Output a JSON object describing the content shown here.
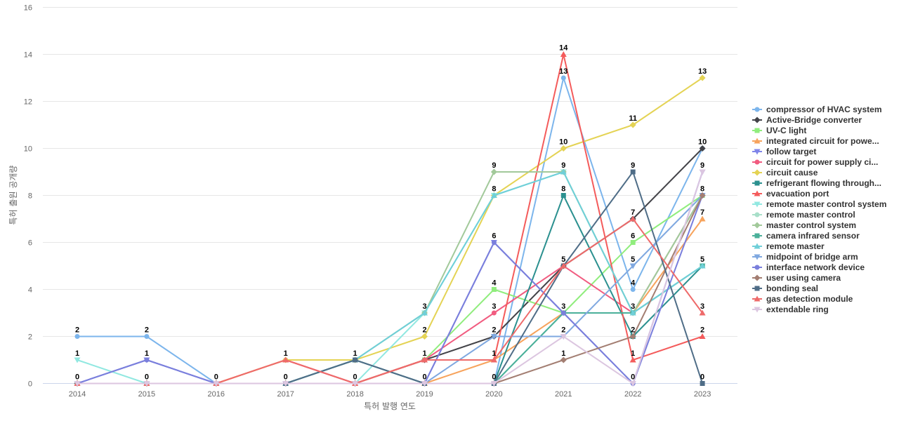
{
  "chart_data": {
    "type": "line",
    "xlabel": "특허 발행 연도",
    "ylabel": "특허 출원 공개량",
    "ylim": [
      0,
      16
    ],
    "yticks": [
      0,
      2,
      4,
      6,
      8,
      10,
      12,
      14,
      16
    ],
    "categories": [
      "2014",
      "2015",
      "2016",
      "2017",
      "2018",
      "2019",
      "2020",
      "2021",
      "2022",
      "2023"
    ],
    "grid": "horizontal",
    "legend_position": "right",
    "series": [
      {
        "name": "compressor of HVAC system",
        "color": "#7cb5ec",
        "marker": "circle",
        "values": [
          2,
          2,
          0,
          0,
          0,
          0,
          0,
          13,
          4,
          10
        ]
      },
      {
        "name": "Active-Bridge converter",
        "color": "#434348",
        "marker": "diamond",
        "values": [
          0,
          0,
          0,
          0,
          0,
          1,
          2,
          5,
          7,
          10
        ]
      },
      {
        "name": "UV-C light",
        "color": "#90ed7d",
        "marker": "square",
        "values": [
          0,
          0,
          0,
          0,
          0,
          1,
          4,
          3,
          6,
          8
        ]
      },
      {
        "name": "integrated circuit for powe...",
        "color": "#f7a35c",
        "marker": "triangle",
        "values": [
          0,
          0,
          0,
          0,
          0,
          0,
          1,
          3,
          3,
          7
        ]
      },
      {
        "name": "follow target",
        "color": "#8085e9",
        "marker": "triangle-down",
        "values": [
          0,
          1,
          0,
          0,
          0,
          0,
          6,
          3,
          0,
          9
        ]
      },
      {
        "name": "circuit for power supply ci...",
        "color": "#f15c80",
        "marker": "circle",
        "values": [
          0,
          0,
          0,
          1,
          0,
          1,
          3,
          5,
          3,
          8
        ]
      },
      {
        "name": "circuit cause",
        "color": "#e4d354",
        "marker": "diamond",
        "values": [
          0,
          0,
          0,
          1,
          1,
          2,
          8,
          10,
          11,
          13
        ]
      },
      {
        "name": "refrigerant flowing through...",
        "color": "#2b908f",
        "marker": "square",
        "values": [
          0,
          0,
          0,
          0,
          1,
          0,
          0,
          8,
          2,
          5
        ]
      },
      {
        "name": "evacuation port",
        "color": "#f45b5b",
        "marker": "triangle",
        "values": [
          0,
          0,
          0,
          0,
          0,
          1,
          1,
          14,
          1,
          2
        ]
      },
      {
        "name": "remote master control system",
        "color": "#91e8e1",
        "marker": "triangle-down",
        "values": [
          1,
          0,
          0,
          0,
          0,
          3,
          8,
          9,
          3,
          5
        ]
      },
      {
        "name": "remote master control",
        "color": "#a8dfc9",
        "marker": "circle",
        "values": [
          0,
          0,
          0,
          0,
          0,
          0,
          0,
          3,
          3,
          8
        ]
      },
      {
        "name": "master control system",
        "color": "#a2c99a",
        "marker": "diamond",
        "values": [
          0,
          0,
          0,
          0,
          1,
          3,
          9,
          9,
          3,
          8
        ]
      },
      {
        "name": "camera infrared sensor",
        "color": "#4ab09a",
        "marker": "square",
        "values": [
          0,
          0,
          0,
          0,
          0,
          0,
          0,
          3,
          3,
          5
        ]
      },
      {
        "name": "remote master",
        "color": "#6fcfd8",
        "marker": "triangle",
        "values": [
          0,
          0,
          0,
          0,
          1,
          3,
          8,
          9,
          3,
          5
        ]
      },
      {
        "name": "midpoint of bridge arm",
        "color": "#7fa8e0",
        "marker": "triangle-down",
        "values": [
          0,
          0,
          0,
          0,
          0,
          0,
          2,
          2,
          5,
          8
        ]
      },
      {
        "name": "interface network device",
        "color": "#7a7fdc",
        "marker": "circle",
        "values": [
          0,
          1,
          0,
          0,
          0,
          0,
          6,
          3,
          0,
          8
        ]
      },
      {
        "name": "user using camera",
        "color": "#a37e72",
        "marker": "diamond",
        "values": [
          0,
          0,
          0,
          0,
          0,
          0,
          0,
          1,
          2,
          8
        ]
      },
      {
        "name": "bonding seal",
        "color": "#4f6d87",
        "marker": "square",
        "values": [
          0,
          0,
          0,
          0,
          1,
          0,
          0,
          5,
          9,
          0
        ]
      },
      {
        "name": "gas detection module",
        "color": "#ee6a6a",
        "marker": "triangle",
        "values": [
          0,
          0,
          0,
          1,
          0,
          1,
          1,
          5,
          7,
          3
        ]
      },
      {
        "name": "extendable ring",
        "color": "#dcc6e0",
        "marker": "triangle-down",
        "values": [
          0,
          0,
          0,
          0,
          0,
          0,
          0,
          2,
          0,
          9
        ]
      }
    ],
    "data_labels": [
      {
        "cat": "2014",
        "value": 2
      },
      {
        "cat": "2014",
        "value": 1
      },
      {
        "cat": "2014",
        "value": 0
      },
      {
        "cat": "2015",
        "value": 2
      },
      {
        "cat": "2015",
        "value": 1
      },
      {
        "cat": "2015",
        "value": 0
      },
      {
        "cat": "2016",
        "value": 0
      },
      {
        "cat": "2017",
        "value": 1
      },
      {
        "cat": "2017",
        "value": 0
      },
      {
        "cat": "2018",
        "value": 1
      },
      {
        "cat": "2018",
        "value": 0
      },
      {
        "cat": "2019",
        "value": 3
      },
      {
        "cat": "2019",
        "value": 2
      },
      {
        "cat": "2019",
        "value": 1
      },
      {
        "cat": "2019",
        "value": 0
      },
      {
        "cat": "2020",
        "value": 9
      },
      {
        "cat": "2020",
        "value": 8
      },
      {
        "cat": "2020",
        "value": 6
      },
      {
        "cat": "2020",
        "value": 4
      },
      {
        "cat": "2020",
        "value": 3
      },
      {
        "cat": "2020",
        "value": 2
      },
      {
        "cat": "2020",
        "value": 1
      },
      {
        "cat": "2020",
        "value": 0
      },
      {
        "cat": "2021",
        "value": 14
      },
      {
        "cat": "2021",
        "value": 13
      },
      {
        "cat": "2021",
        "value": 10
      },
      {
        "cat": "2021",
        "value": 9
      },
      {
        "cat": "2021",
        "value": 8
      },
      {
        "cat": "2021",
        "value": 5
      },
      {
        "cat": "2021",
        "value": 3
      },
      {
        "cat": "2021",
        "value": 2
      },
      {
        "cat": "2021",
        "value": 1
      },
      {
        "cat": "2022",
        "value": 11
      },
      {
        "cat": "2022",
        "value": 9
      },
      {
        "cat": "2022",
        "value": 7
      },
      {
        "cat": "2022",
        "value": 6
      },
      {
        "cat": "2022",
        "value": 5
      },
      {
        "cat": "2022",
        "value": 4
      },
      {
        "cat": "2022",
        "value": 3
      },
      {
        "cat": "2022",
        "value": 2
      },
      {
        "cat": "2022",
        "value": 1
      },
      {
        "cat": "2022",
        "value": 0
      },
      {
        "cat": "2023",
        "value": 13
      },
      {
        "cat": "2023",
        "value": 10
      },
      {
        "cat": "2023",
        "value": 9
      },
      {
        "cat": "2023",
        "value": 8
      },
      {
        "cat": "2023",
        "value": 7
      },
      {
        "cat": "2023",
        "value": 5
      },
      {
        "cat": "2023",
        "value": 3
      },
      {
        "cat": "2023",
        "value": 2
      },
      {
        "cat": "2023",
        "value": 0
      }
    ]
  }
}
